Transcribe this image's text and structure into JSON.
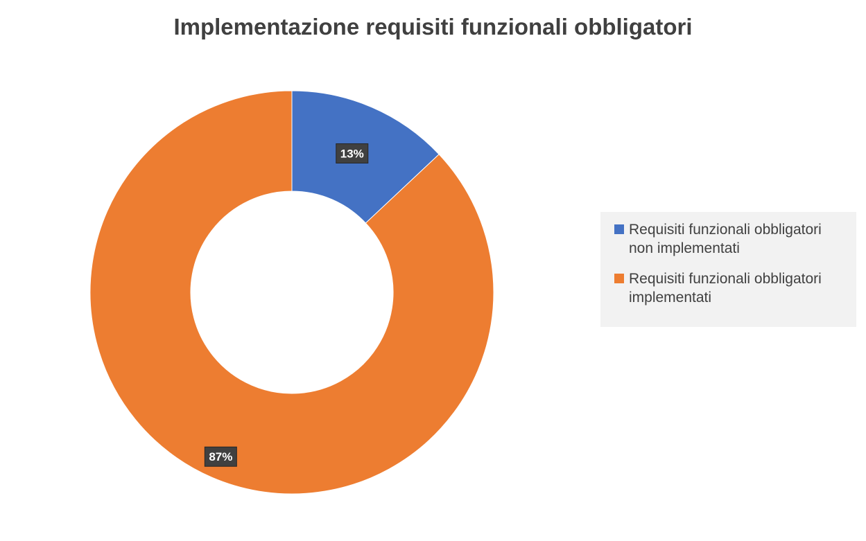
{
  "chart_data": {
    "type": "pie",
    "variant": "donut",
    "title": "Implementazione requisiti funzionali obbligatori",
    "series": [
      {
        "values": [
          13,
          87
        ],
        "labels": [
          "Requisiti funzionali obbligatori non implementati",
          "Requisiti funzionali obbligatori implementati"
        ],
        "legend_lines": [
          [
            "Requisiti funzionali obbligatori",
            "non implementati"
          ],
          [
            "Requisiti funzionali obbligatori",
            "implementati"
          ]
        ],
        "data_labels": [
          "13%",
          "87%"
        ],
        "colors": [
          "#4472c4",
          "#ed7d31"
        ]
      }
    ],
    "legend_position": "right"
  }
}
